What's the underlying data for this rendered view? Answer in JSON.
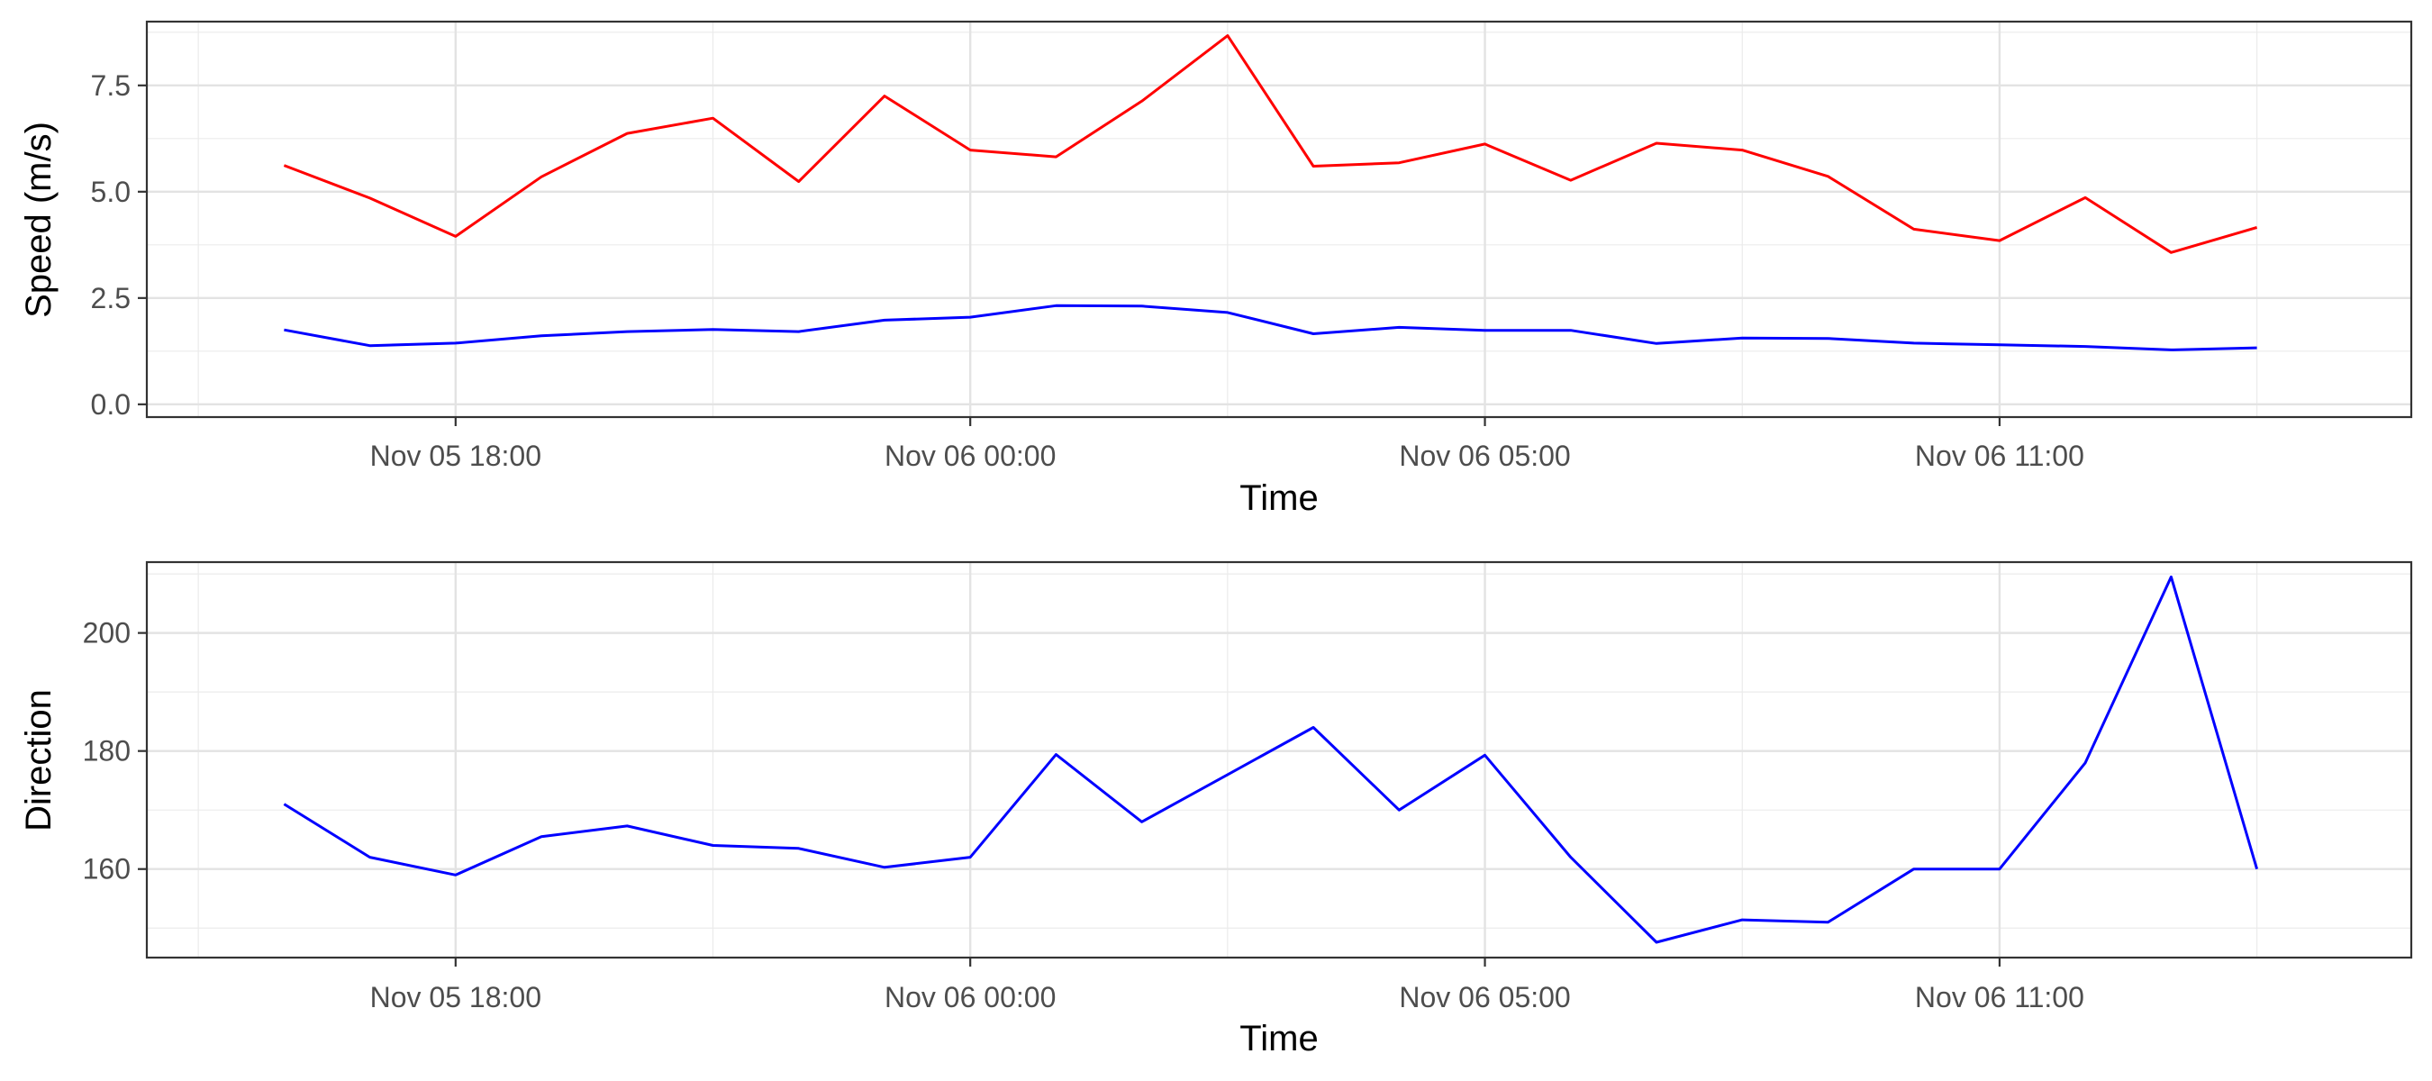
{
  "chart_data": [
    {
      "type": "line",
      "xlabel": "Time",
      "ylabel": "Speed (m/s)",
      "ylim": [
        -0.3,
        9.0
      ],
      "yticks": [
        0.0,
        2.5,
        5.0,
        7.5
      ],
      "ytick_labels": [
        "0.0",
        "2.5",
        "5.0",
        "7.5"
      ],
      "x_axis": {
        "time_hours_range": [
          -3.6,
          22.8
        ],
        "ticks": [
          {
            "label": "Nov 05 18:00"
          },
          {
            "label": "Nov 06 00:00"
          },
          {
            "label": "Nov 06 05:00"
          },
          {
            "label": "Nov 06 11:00"
          }
        ]
      },
      "grid": true,
      "series": [
        {
          "color": "#ff0000",
          "values": [
            5.62,
            4.85,
            3.95,
            5.35,
            6.37,
            6.73,
            5.24,
            7.25,
            5.98,
            5.82,
            7.13,
            8.67,
            5.6,
            5.68,
            6.12,
            5.27,
            6.14,
            5.98,
            5.36,
            4.12,
            3.85,
            4.86,
            3.57,
            4.16
          ]
        },
        {
          "color": "#0000ff",
          "values": [
            1.75,
            1.38,
            1.44,
            1.61,
            1.71,
            1.76,
            1.71,
            1.98,
            2.05,
            2.32,
            2.31,
            2.16,
            1.66,
            1.81,
            1.74,
            1.74,
            1.43,
            1.56,
            1.55,
            1.44,
            1.4,
            1.36,
            1.28,
            1.33
          ]
        }
      ]
    },
    {
      "type": "line",
      "xlabel": "Time",
      "ylabel": "Direction",
      "ylim": [
        145,
        212
      ],
      "yticks": [
        160,
        180,
        200
      ],
      "ytick_labels": [
        "160",
        "180",
        "200"
      ],
      "x_axis": {
        "time_hours_range": [
          -3.6,
          22.8
        ],
        "ticks": [
          {
            "label": "Nov 05 18:00"
          },
          {
            "label": "Nov 06 00:00"
          },
          {
            "label": "Nov 06 05:00"
          },
          {
            "label": "Nov 06 11:00"
          }
        ]
      },
      "grid": true,
      "series": [
        {
          "color": "#0000ff",
          "values": [
            171,
            162,
            159,
            165.5,
            167.3,
            164,
            163.5,
            160.3,
            162,
            179.4,
            168,
            176,
            184,
            170,
            179.3,
            162,
            147.6,
            151.4,
            151,
            160,
            160,
            178,
            209.5,
            160
          ]
        }
      ]
    }
  ]
}
